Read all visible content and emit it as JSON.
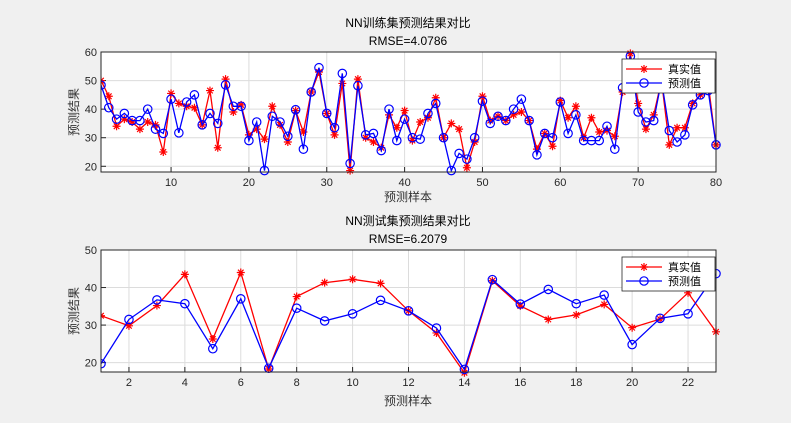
{
  "colors": {
    "real": "#ff0000",
    "pred": "#0000ff",
    "grid": "#dcdcdc",
    "axes": "#262626",
    "background": "#f0f0f0"
  },
  "chart_data": [
    {
      "type": "line",
      "title": "NN训练集预测结果对比",
      "subtitle": "RMSE=4.0786",
      "xlabel": "预测样本",
      "ylabel": "预测结果",
      "xlim": [
        1,
        80
      ],
      "ylim": [
        18,
        60
      ],
      "xticks": [
        10,
        20,
        30,
        40,
        50,
        60,
        70,
        80
      ],
      "yticks": [
        20,
        30,
        40,
        50,
        60
      ],
      "grid": true,
      "legend": "top-right",
      "x": [
        1,
        2,
        3,
        4,
        5,
        6,
        7,
        8,
        9,
        10,
        11,
        12,
        13,
        14,
        15,
        16,
        17,
        18,
        19,
        20,
        21,
        22,
        23,
        24,
        25,
        26,
        27,
        28,
        29,
        30,
        31,
        32,
        33,
        34,
        35,
        36,
        37,
        38,
        39,
        40,
        41,
        42,
        43,
        44,
        45,
        46,
        47,
        48,
        49,
        50,
        51,
        52,
        53,
        54,
        55,
        56,
        57,
        58,
        59,
        60,
        61,
        62,
        63,
        64,
        65,
        66,
        67,
        68,
        69,
        70,
        71,
        72,
        73,
        74,
        75,
        76,
        77,
        78,
        79,
        80
      ],
      "series": [
        {
          "name": "真实值",
          "marker": "asterisk",
          "color": "#ff0000",
          "values": [
            50,
            44.5,
            34,
            36.5,
            35.5,
            33,
            35.5,
            34.5,
            25,
            45.5,
            42,
            41,
            40.5,
            34.5,
            46.5,
            26.5,
            50.5,
            39,
            41.5,
            31,
            33,
            29.5,
            41,
            34.5,
            28.5,
            39.5,
            32,
            46,
            53,
            38.5,
            31,
            49,
            18.5,
            50.5,
            30,
            28.5,
            26.5,
            38,
            33.5,
            39.5,
            29,
            35.5,
            37,
            44,
            30,
            35,
            33,
            19.5,
            28.5,
            44.5,
            36,
            37.5,
            36,
            38,
            39,
            36,
            26,
            31.5,
            27,
            43,
            37,
            41,
            30,
            37,
            32,
            32.5,
            30.5,
            46,
            59.5,
            42,
            33,
            38,
            50,
            27.5,
            33.5,
            33.5,
            42,
            45,
            49,
            27.5
          ]
        },
        {
          "name": "预测值",
          "marker": "circle",
          "color": "#0000ff",
          "values": [
            48.4,
            40.5,
            36.5,
            38.5,
            36,
            36,
            40,
            33,
            31.5,
            43.5,
            31.7,
            42.5,
            45,
            34.5,
            38.5,
            35,
            48.5,
            41,
            41,
            29,
            35.5,
            18.5,
            37.5,
            35.5,
            30.5,
            39.8,
            26,
            46,
            54.5,
            38.5,
            33.5,
            52.5,
            21,
            48.2,
            31,
            31.5,
            25.5,
            40,
            29,
            36.5,
            30,
            29.5,
            38.5,
            42,
            30,
            18.5,
            24.5,
            22.5,
            30,
            42.8,
            35,
            37.5,
            36,
            40,
            43.5,
            36,
            24,
            31.5,
            30,
            42.5,
            31.5,
            38,
            29,
            29,
            29,
            34,
            26,
            47.5,
            58.5,
            39,
            35.5,
            36,
            50,
            32.5,
            28.5,
            31,
            41.5,
            45,
            46.5,
            27.5
          ]
        }
      ]
    },
    {
      "type": "line",
      "title": "NN测试集预测结果对比",
      "subtitle": "RMSE=6.2079",
      "xlabel": "预测样本",
      "ylabel": "预测结果",
      "xlim": [
        1,
        23
      ],
      "ylim": [
        17.5,
        50
      ],
      "xticks": [
        2,
        4,
        6,
        8,
        10,
        12,
        14,
        16,
        18,
        20,
        22
      ],
      "yticks": [
        20,
        30,
        40,
        50
      ],
      "grid": true,
      "legend": "top-right",
      "x": [
        1,
        2,
        3,
        4,
        5,
        6,
        7,
        8,
        9,
        10,
        11,
        12,
        13,
        14,
        15,
        16,
        17,
        18,
        19,
        20,
        21,
        22,
        23
      ],
      "series": [
        {
          "name": "真实值",
          "marker": "asterisk",
          "color": "#ff0000",
          "values": [
            32.5,
            29.8,
            35.2,
            43.5,
            26.3,
            44,
            18.3,
            37.6,
            41.3,
            42.2,
            41.1,
            33.8,
            27.9,
            17.3,
            41.8,
            35.1,
            31.5,
            32.7,
            35.5,
            29.3,
            31.6,
            38.6,
            28.2
          ]
        },
        {
          "name": "预测值",
          "marker": "circle",
          "color": "#0000ff",
          "values": [
            19.7,
            31.5,
            36.7,
            35.7,
            23.7,
            37,
            18.5,
            34.5,
            31.1,
            33,
            36.6,
            33.8,
            29.2,
            18.2,
            42.1,
            35.6,
            39.5,
            35.7,
            38,
            24.8,
            31.8,
            33,
            43.7
          ]
        }
      ]
    }
  ]
}
